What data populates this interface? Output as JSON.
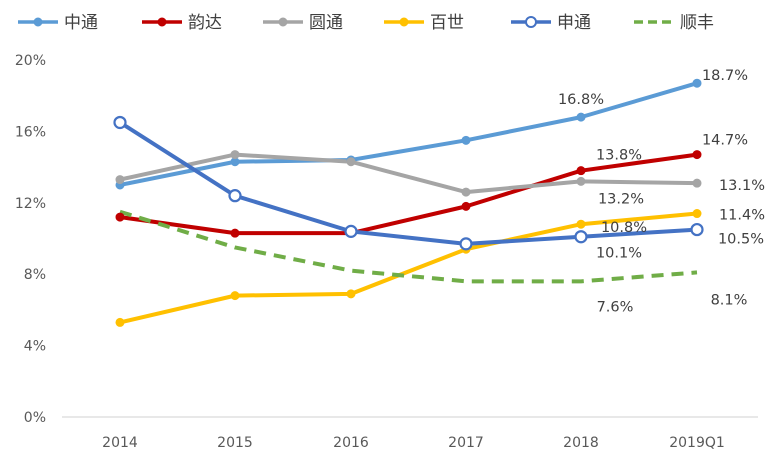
{
  "chart_data": {
    "type": "line",
    "categories": [
      "2014",
      "2015",
      "2016",
      "2017",
      "2018",
      "2019Q1"
    ],
    "ylim": [
      0,
      20
    ],
    "yticks": [
      "0%",
      "4%",
      "8%",
      "12%",
      "16%",
      "20%"
    ],
    "ytick_values": [
      0,
      4,
      8,
      12,
      16,
      20
    ],
    "grid": false,
    "legend_position": "top",
    "series": [
      {
        "name": "中通",
        "color": "#5B9BD5",
        "dash": false,
        "marker": "filled",
        "values": [
          13.0,
          14.3,
          14.4,
          15.5,
          16.8,
          18.7
        ],
        "labels": [
          "",
          "",
          "",
          "",
          "16.8%",
          "18.7%"
        ]
      },
      {
        "name": "韵达",
        "color": "#C00000",
        "dash": false,
        "marker": "filled",
        "values": [
          11.2,
          10.3,
          10.3,
          11.8,
          13.8,
          14.7
        ],
        "labels": [
          "",
          "",
          "",
          "",
          "13.8%",
          "14.7%"
        ]
      },
      {
        "name": "圆通",
        "color": "#A5A5A5",
        "dash": false,
        "marker": "filled",
        "values": [
          13.3,
          14.7,
          14.3,
          12.6,
          13.2,
          13.1
        ],
        "labels": [
          "",
          "",
          "",
          "",
          "13.2%",
          "13.1%"
        ]
      },
      {
        "name": "百世",
        "color": "#FFC000",
        "dash": false,
        "marker": "filled",
        "values": [
          5.3,
          6.8,
          6.9,
          9.4,
          10.8,
          11.4
        ],
        "labels": [
          "",
          "",
          "",
          "",
          "10.8%",
          "11.4%"
        ]
      },
      {
        "name": "申通",
        "color": "#4472C4",
        "dash": false,
        "marker": "hollow",
        "values": [
          16.5,
          12.4,
          10.4,
          9.7,
          10.1,
          10.5
        ],
        "labels": [
          "",
          "",
          "",
          "",
          "10.1%",
          "10.5%"
        ]
      },
      {
        "name": "顺丰",
        "color": "#70AD47",
        "dash": true,
        "marker": "none",
        "values": [
          11.5,
          9.5,
          8.2,
          7.6,
          7.6,
          8.1
        ],
        "labels": [
          "",
          "",
          "",
          "",
          "7.6%",
          "8.1%"
        ]
      }
    ]
  }
}
